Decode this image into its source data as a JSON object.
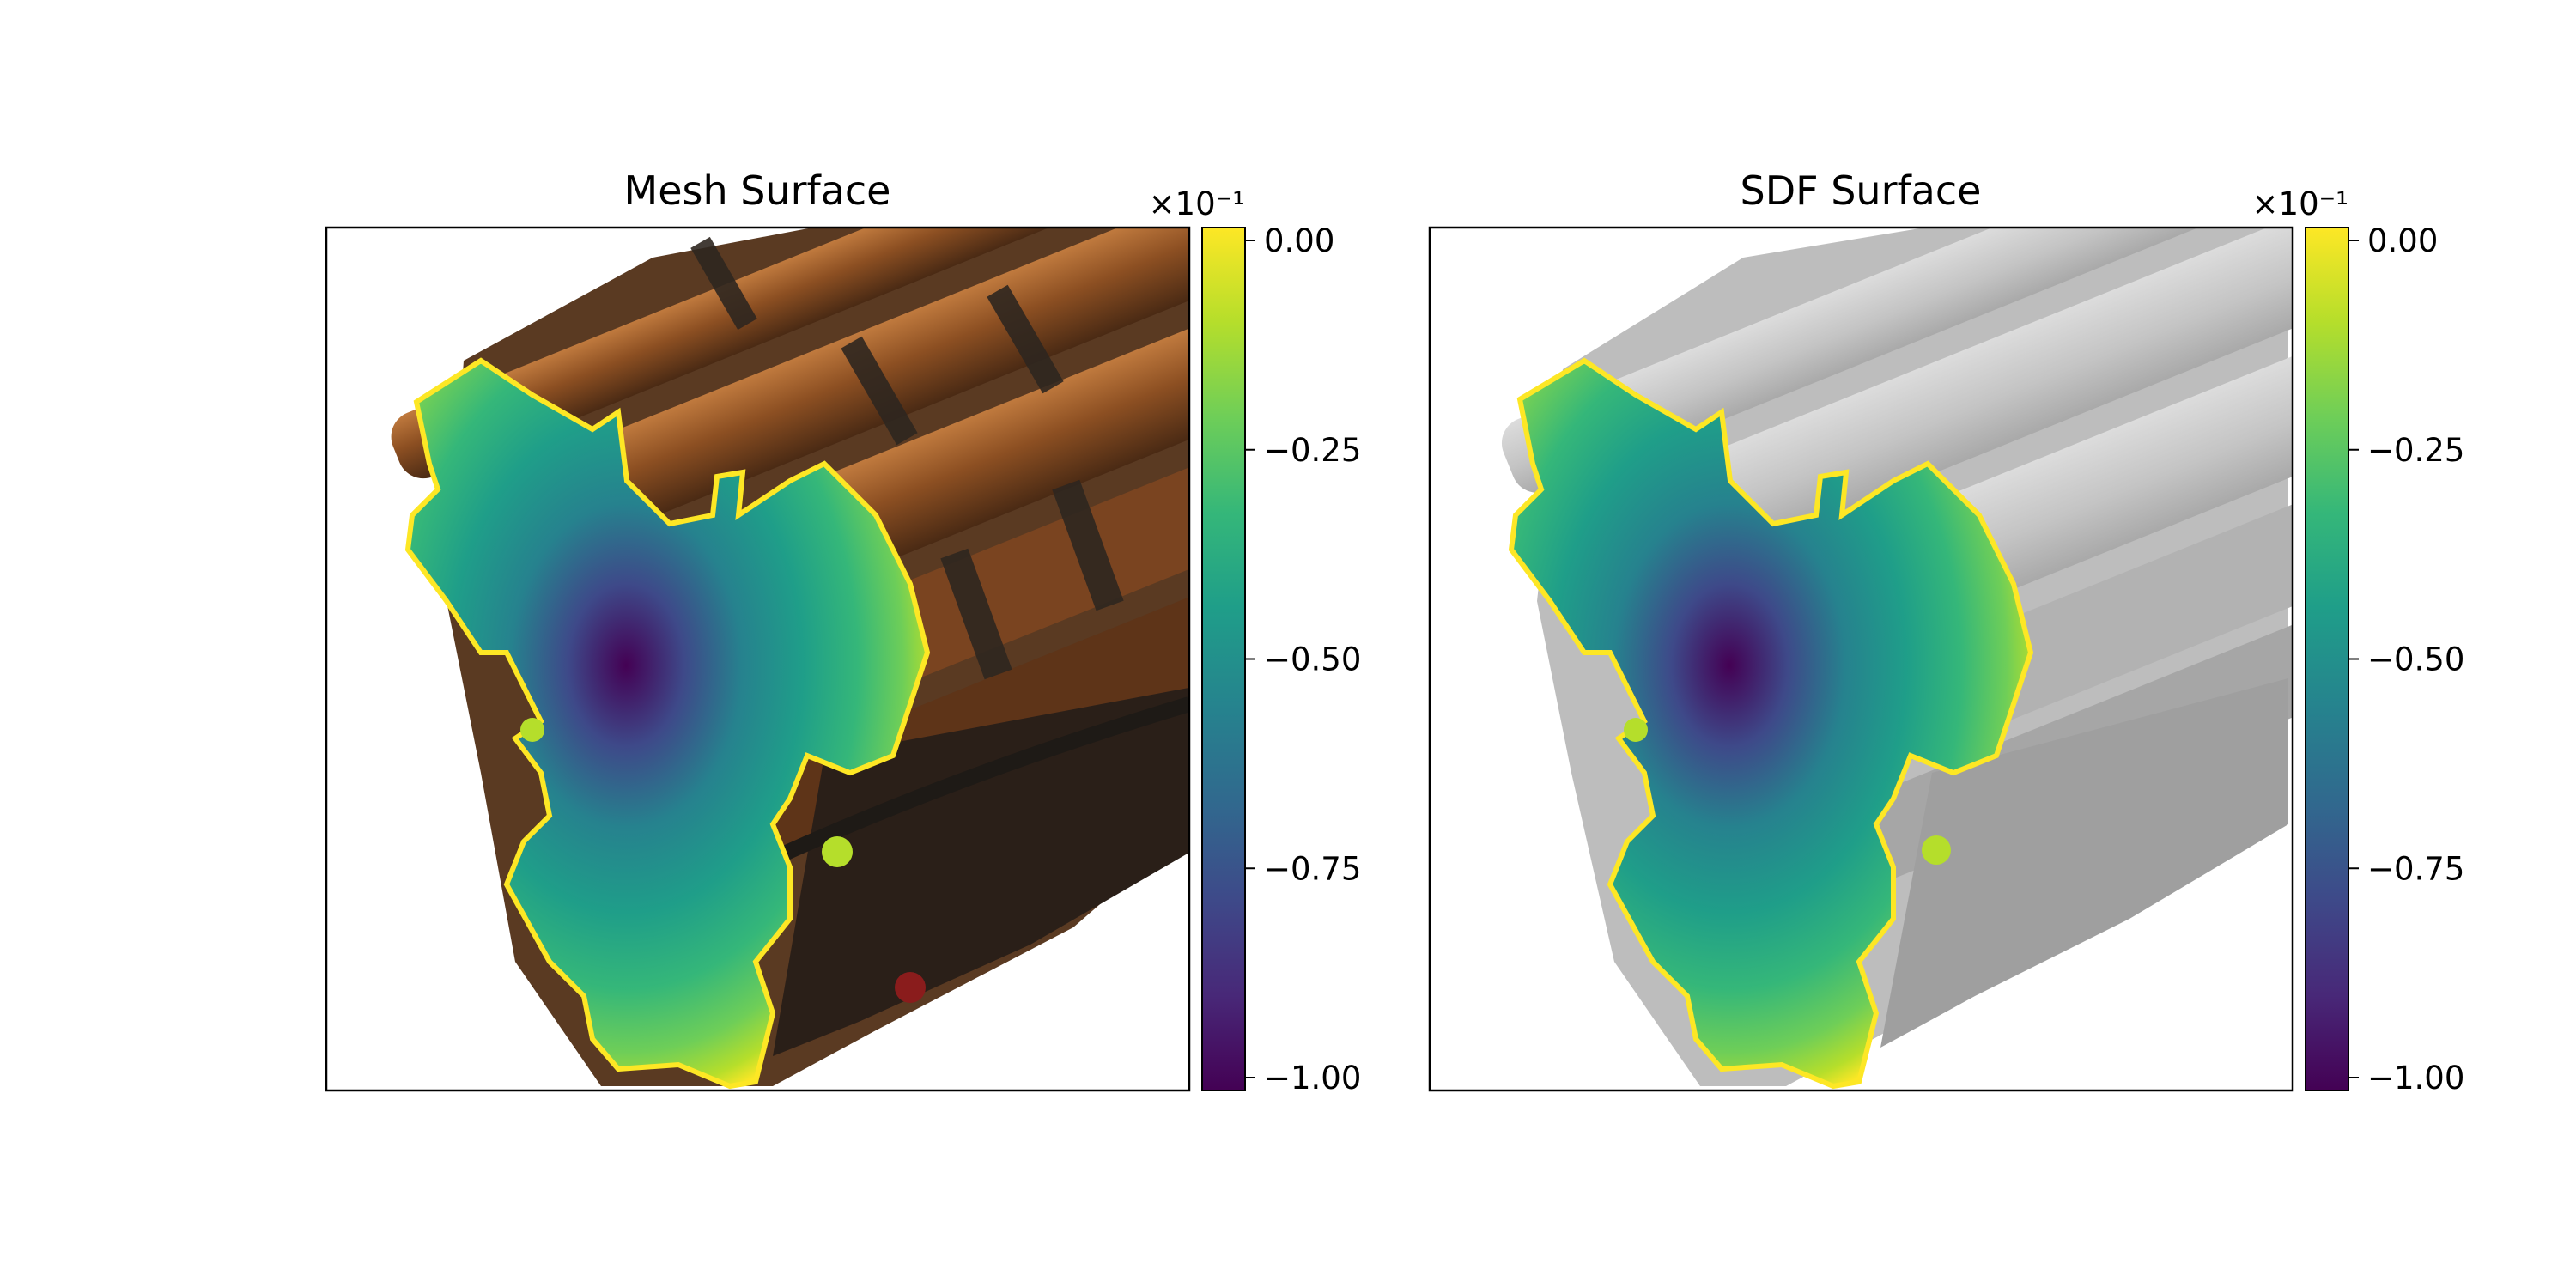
{
  "chart_data": [
    {
      "type": "heatmap",
      "title": "Mesh Surface",
      "background": "textured mesh rendering",
      "colormap": "viridis",
      "colorbar": {
        "range": [
          -1.0,
          0.0
        ],
        "scale_label": "×10⁻¹",
        "ticks": [
          0.0,
          -0.25,
          -0.5,
          -0.75,
          -1.0
        ],
        "tick_labels": [
          "0.00",
          "−0.25",
          "−0.50",
          "−0.75",
          "−1.00"
        ]
      },
      "xaxis_ticks": "none",
      "yaxis_ticks": "none"
    },
    {
      "type": "heatmap",
      "title": "SDF Surface",
      "background": "gray SDF rendering",
      "colormap": "viridis",
      "colorbar": {
        "range": [
          -1.0,
          0.0
        ],
        "scale_label": "×10⁻¹",
        "ticks": [
          0.0,
          -0.25,
          -0.5,
          -0.75,
          -1.0
        ],
        "tick_labels": [
          "0.00",
          "−0.25",
          "−0.50",
          "−0.75",
          "−1.00"
        ]
      },
      "xaxis_ticks": "none",
      "yaxis_ticks": "none"
    }
  ],
  "colors": {
    "viridis": [
      "#440154",
      "#482878",
      "#3e4989",
      "#31688e",
      "#26828e",
      "#1f9e89",
      "#35b779",
      "#6ece58",
      "#b5de2b",
      "#fde725"
    ],
    "mesh_copper": "#9a5a2a",
    "mesh_dark": "#3a2c22",
    "sdf_gray": "#c9c9c9"
  }
}
